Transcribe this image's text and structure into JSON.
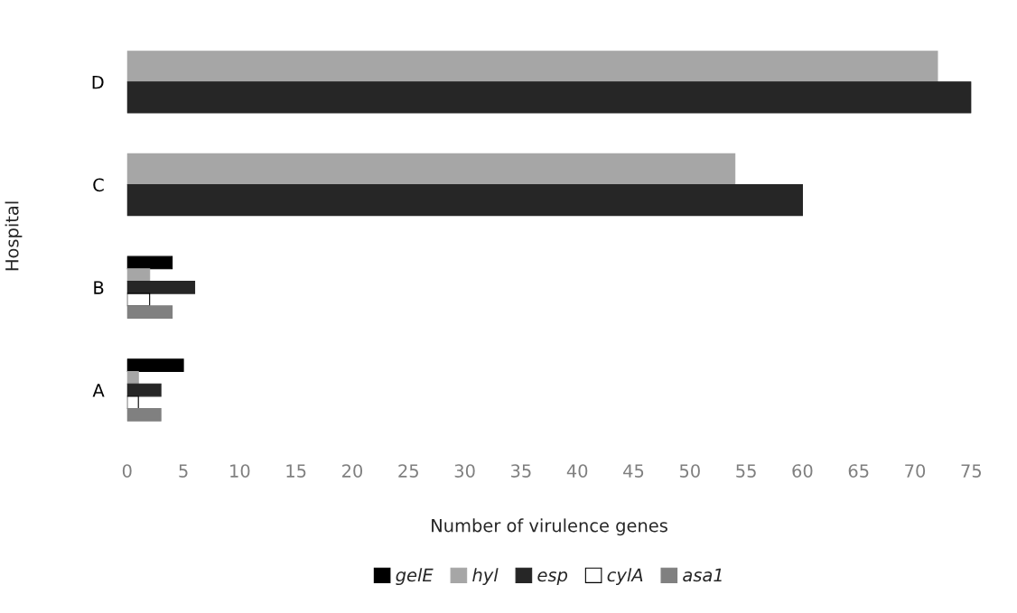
{
  "chart_data": {
    "type": "bar",
    "orientation": "horizontal",
    "xlabel": "Number of virulence genes",
    "ylabel": "Hospital",
    "categories": [
      "D",
      "C",
      "B",
      "A"
    ],
    "series": [
      {
        "name": "gelE",
        "color": "#000000",
        "values": [
          null,
          null,
          4,
          5
        ]
      },
      {
        "name": "hyl",
        "color": "#a6a6a6",
        "values": [
          72,
          54,
          2,
          1
        ]
      },
      {
        "name": "esp",
        "color": "#262626",
        "values": [
          75,
          60,
          6,
          3
        ]
      },
      {
        "name": "cylA",
        "color": "#ffffff",
        "values": [
          null,
          null,
          2,
          1
        ]
      },
      {
        "name": "asa1",
        "color": "#808080",
        "values": [
          null,
          null,
          4,
          3
        ]
      }
    ],
    "xlim": [
      0,
      75
    ],
    "xticks": [
      0,
      5,
      10,
      15,
      20,
      25,
      30,
      35,
      40,
      45,
      50,
      55,
      60,
      65,
      70,
      75
    ],
    "grid": false,
    "legend": "bottom"
  }
}
